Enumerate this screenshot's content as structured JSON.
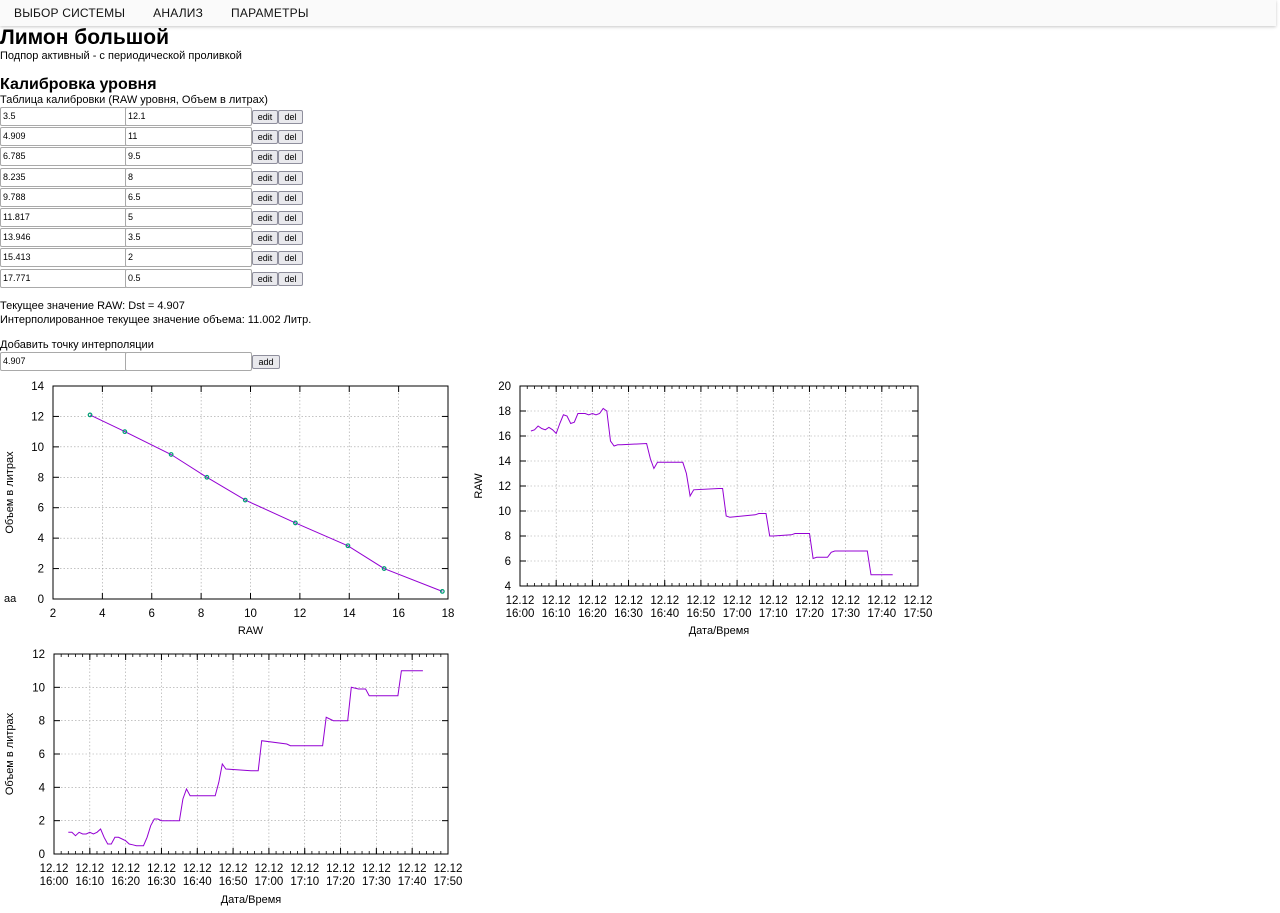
{
  "nav": {
    "items": [
      "ВЫБОР СИСТЕМЫ",
      "АНАЛИЗ",
      "ПАРАМЕТРЫ"
    ]
  },
  "page": {
    "title": "Лимон большой",
    "subtitle": "Подпор активный - с периодической проливкой",
    "stray_text": "aa"
  },
  "calibration": {
    "heading": "Калибровка уровня",
    "table_caption": "Таблица калибровки (RAW уровня, Объем в литрах)",
    "edit_label": "edit",
    "del_label": "del",
    "rows": [
      {
        "raw": "3.5",
        "volume": "12.1"
      },
      {
        "raw": "4.909",
        "volume": "11"
      },
      {
        "raw": "6.785",
        "volume": "9.5"
      },
      {
        "raw": "8.235",
        "volume": "8"
      },
      {
        "raw": "9.788",
        "volume": "6.5"
      },
      {
        "raw": "11.817",
        "volume": "5"
      },
      {
        "raw": "13.946",
        "volume": "3.5"
      },
      {
        "raw": "15.413",
        "volume": "2"
      },
      {
        "raw": "17.771",
        "volume": "0.5"
      }
    ],
    "current_raw_text": "Текущее значение RAW: Dst = 4.907",
    "interpolated_text": "Интерполированное текущее значение объема: 11.002 Литр.",
    "add_caption": "Добавить точку интерполяции",
    "add_raw_value": "4.907",
    "add_volume_value": "",
    "add_label": "add"
  },
  "chart_data": [
    {
      "type": "line",
      "name": "calibration-curve",
      "xlabel": "RAW",
      "ylabel": "Объем в литрах",
      "xlim": [
        2,
        18
      ],
      "ylim": [
        0,
        14
      ],
      "x_ticks": [
        "2",
        "4",
        "6",
        "8",
        "10",
        "12",
        "14",
        "16",
        "18"
      ],
      "y_ticks": [
        "0",
        "2",
        "4",
        "6",
        "8",
        "10",
        "12",
        "14"
      ],
      "grid": true,
      "line_color": "#9400d3",
      "marker_color": "#009e73",
      "x": [
        3.5,
        4.909,
        6.785,
        8.235,
        9.788,
        11.817,
        13.946,
        15.413,
        17.771
      ],
      "y": [
        12.1,
        11,
        9.5,
        8,
        6.5,
        5,
        3.5,
        2,
        0.5
      ]
    },
    {
      "type": "line",
      "name": "raw-over-time",
      "xlabel": "Дата/Время",
      "ylabel": "RAW",
      "xlim": [
        0,
        110
      ],
      "ylim": [
        4,
        20
      ],
      "x_tick_values": [
        0,
        10,
        20,
        30,
        40,
        50,
        60,
        70,
        80,
        90,
        100,
        110
      ],
      "x_ticks": [
        [
          "12.12",
          "16:00"
        ],
        [
          "12.12",
          "16:10"
        ],
        [
          "12.12",
          "16:20"
        ],
        [
          "12.12",
          "16:30"
        ],
        [
          "12.12",
          "16:40"
        ],
        [
          "12.12",
          "16:50"
        ],
        [
          "12.12",
          "17:00"
        ],
        [
          "12.12",
          "17:10"
        ],
        [
          "12.12",
          "17:20"
        ],
        [
          "12.12",
          "17:30"
        ],
        [
          "12.12",
          "17:40"
        ],
        [
          "12.12",
          "17:50"
        ]
      ],
      "y_ticks": [
        "4",
        "6",
        "8",
        "10",
        "12",
        "14",
        "16",
        "18",
        "20"
      ],
      "grid": true,
      "line_color": "#9400d3",
      "x": [
        3,
        4,
        5,
        6,
        7,
        8,
        9,
        10,
        11,
        12,
        13,
        14,
        15,
        16,
        17,
        18,
        19,
        20,
        21,
        22,
        23,
        24,
        25,
        26,
        27,
        28,
        35,
        36,
        37,
        38,
        45,
        46,
        47,
        48,
        55,
        56,
        57,
        58,
        65,
        66,
        67,
        68,
        69,
        70,
        75,
        76,
        77,
        78,
        80,
        81,
        82,
        83,
        85,
        86,
        87,
        88,
        90,
        91,
        92,
        93,
        96,
        97,
        98,
        99,
        103
      ],
      "y": [
        16.4,
        16.5,
        16.8,
        16.6,
        16.5,
        16.7,
        16.5,
        16.2,
        17.0,
        17.7,
        17.6,
        17.0,
        17.1,
        17.8,
        17.8,
        17.8,
        17.7,
        17.8,
        17.7,
        17.8,
        18.2,
        18.0,
        15.6,
        15.2,
        15.3,
        15.3,
        15.4,
        14.2,
        13.4,
        13.9,
        13.9,
        13.0,
        11.2,
        11.7,
        11.8,
        11.8,
        9.6,
        9.5,
        9.7,
        9.8,
        9.8,
        9.8,
        8.0,
        8.0,
        8.1,
        8.2,
        8.2,
        8.2,
        8.2,
        6.2,
        6.3,
        6.3,
        6.3,
        6.7,
        6.8,
        6.8,
        6.8,
        6.8,
        6.8,
        6.8,
        6.8,
        4.9,
        4.9,
        4.9,
        4.9
      ]
    },
    {
      "type": "line",
      "name": "volume-over-time",
      "xlabel": "Дата/Время",
      "ylabel": "Объем в литрах",
      "xlim": [
        0,
        110
      ],
      "ylim": [
        0,
        12
      ],
      "x_tick_values": [
        0,
        10,
        20,
        30,
        40,
        50,
        60,
        70,
        80,
        90,
        100,
        110
      ],
      "x_ticks": [
        [
          "12.12",
          "16:00"
        ],
        [
          "12.12",
          "16:10"
        ],
        [
          "12.12",
          "16:20"
        ],
        [
          "12.12",
          "16:30"
        ],
        [
          "12.12",
          "16:40"
        ],
        [
          "12.12",
          "16:50"
        ],
        [
          "12.12",
          "17:00"
        ],
        [
          "12.12",
          "17:10"
        ],
        [
          "12.12",
          "17:20"
        ],
        [
          "12.12",
          "17:30"
        ],
        [
          "12.12",
          "17:40"
        ],
        [
          "12.12",
          "17:50"
        ]
      ],
      "y_ticks": [
        "0",
        "2",
        "4",
        "6",
        "8",
        "10",
        "12"
      ],
      "grid": true,
      "line_color": "#9400d3",
      "x": [
        4,
        5,
        6,
        7,
        8,
        9,
        10,
        11,
        12,
        13,
        14,
        15,
        16,
        17,
        18,
        19,
        20,
        21,
        22,
        23,
        24,
        25,
        26,
        27,
        28,
        29,
        30,
        31,
        35,
        36,
        37,
        38,
        45,
        46,
        47,
        48,
        55,
        56,
        57,
        58,
        65,
        66,
        67,
        68,
        69,
        70,
        75,
        76,
        77,
        78,
        80,
        81,
        82,
        83,
        85,
        86,
        87,
        88,
        90,
        91,
        92,
        93,
        96,
        97,
        98,
        99,
        103
      ],
      "y": [
        1.3,
        1.3,
        1.1,
        1.3,
        1.2,
        1.2,
        1.3,
        1.2,
        1.3,
        1.5,
        1.0,
        0.6,
        0.6,
        1.0,
        1.0,
        0.9,
        0.8,
        0.6,
        0.55,
        0.5,
        0.5,
        0.5,
        1.0,
        1.7,
        2.1,
        2.1,
        2.0,
        2.0,
        2.0,
        3.3,
        3.9,
        3.5,
        3.5,
        4.3,
        5.4,
        5.1,
        5.0,
        5.0,
        5.0,
        6.8,
        6.6,
        6.5,
        6.5,
        6.5,
        6.5,
        6.5,
        6.5,
        8.2,
        8.1,
        8.0,
        8.0,
        8.0,
        8.0,
        10.0,
        9.9,
        9.9,
        9.9,
        9.5,
        9.5,
        9.5,
        9.5,
        9.5,
        9.5,
        11.0,
        11.0,
        11.0,
        11.0
      ]
    }
  ]
}
